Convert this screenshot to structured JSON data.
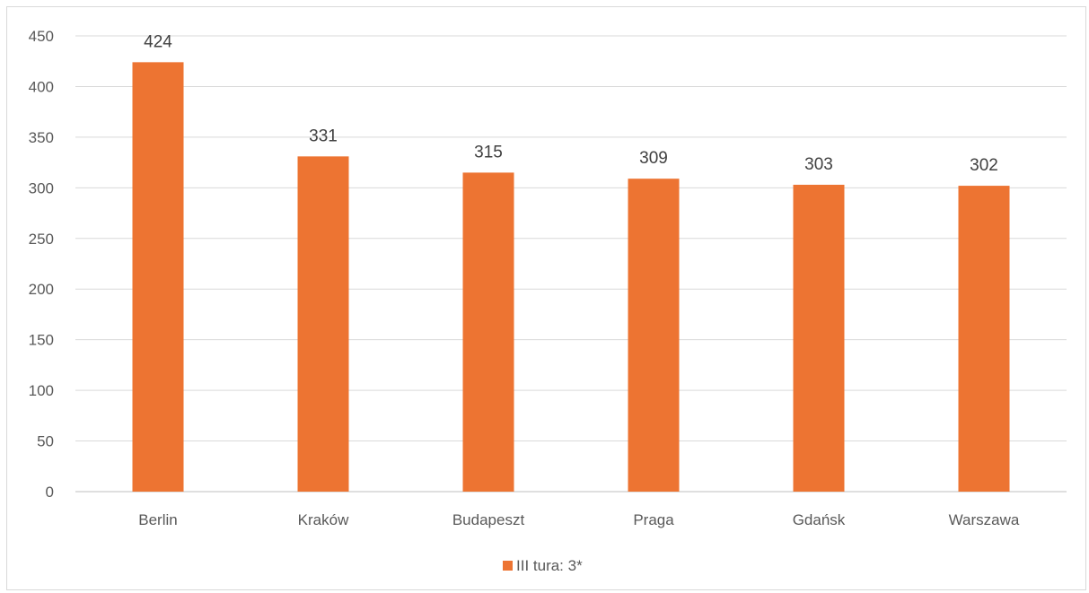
{
  "chart_data": {
    "type": "bar",
    "title": "",
    "xlabel": "",
    "ylabel": "",
    "categories": [
      "Berlin",
      "Kraków",
      "Budapeszt",
      "Praga",
      "Gdańsk",
      "Warszawa"
    ],
    "series": [
      {
        "name": "III tura: 3*",
        "values": [
          424,
          331,
          315,
          309,
          303,
          302
        ],
        "color": "#ED7432"
      }
    ],
    "ylim": [
      0,
      450
    ],
    "yticks": [
      0,
      50,
      100,
      150,
      200,
      250,
      300,
      350,
      400,
      450
    ],
    "grid": true,
    "data_labels": true,
    "legend": "bottom"
  }
}
